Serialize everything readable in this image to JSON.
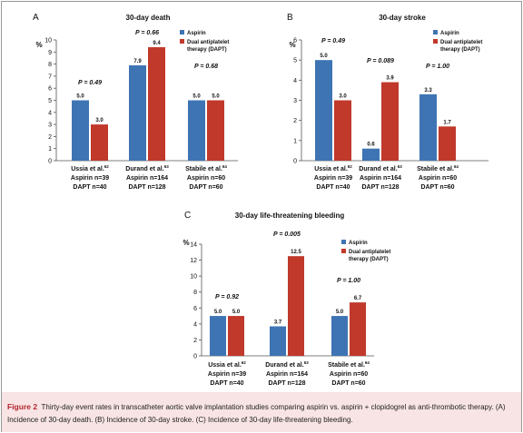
{
  "colors": {
    "aspirin": "#3e74b3",
    "dapt": "#c0392b",
    "caption_bg": "#f8e4e4",
    "caption_label": "#b3262e"
  },
  "legend": {
    "aspirin": "Aspirin",
    "dapt_line1": "Dual antiplatelet",
    "dapt_line2": "therapy (DAPT)"
  },
  "caption": {
    "label": "Figure 2",
    "text": "Thirty-day event rates in transcatheter aortic valve implantation studies comparing aspirin vs. aspirin + clopidogrel as anti-thrombotic therapy. (A) Incidence of 30-day death. (B) Incidence of 30-day stroke. (C) Incidence of 30-day life-threatening bleeding."
  },
  "chart_data": [
    {
      "panel": "A",
      "type": "bar",
      "title": "30-day death",
      "ylabel": "%",
      "ylim": [
        0,
        10
      ],
      "yticks": [
        0,
        1,
        2,
        3,
        4,
        5,
        6,
        7,
        8,
        9,
        10
      ],
      "legend_position": "top-right",
      "grid": false,
      "categories": [
        {
          "study": "Ussia et al.",
          "ref": "62",
          "line2": "Aspirin n=39",
          "line3": "DAPT n=40"
        },
        {
          "study": "Durand et al.",
          "ref": "63",
          "line2": "Aspirin n=164",
          "line3": "DAPT n=128"
        },
        {
          "study": "Stabile et al.",
          "ref": "64",
          "line2": "Aspirin n=60",
          "line3": "DAPT n=60"
        }
      ],
      "series": [
        {
          "name": "Aspirin",
          "values": [
            5.0,
            7.9,
            5.0
          ],
          "labels": [
            "5.0",
            "7.9",
            "5.0"
          ]
        },
        {
          "name": "Dual antiplatelet therapy (DAPT)",
          "values": [
            3.0,
            9.4,
            5.0
          ],
          "labels": [
            "3.0",
            "9.4",
            "5.0"
          ]
        }
      ],
      "pvalues": [
        "P = 0.49",
        "P = 0.66",
        "P = 0.68"
      ]
    },
    {
      "panel": "B",
      "type": "bar",
      "title": "30-day stroke",
      "ylabel": "%",
      "ylim": [
        0,
        6
      ],
      "yticks": [
        0,
        1,
        2,
        3,
        4,
        5,
        6
      ],
      "legend_position": "top-right",
      "grid": false,
      "categories": [
        {
          "study": "Ussia et al.",
          "ref": "62",
          "line2": "Aspirin n=39",
          "line3": "DAPT n=40"
        },
        {
          "study": "Durand et al.",
          "ref": "63",
          "line2": "Aspirin n=164",
          "line3": "DAPT n=128"
        },
        {
          "study": "Stabile et al.",
          "ref": "64",
          "line2": "Aspirin n=60",
          "line3": "DAPT n=60"
        }
      ],
      "series": [
        {
          "name": "Aspirin",
          "values": [
            5.0,
            0.6,
            3.3
          ],
          "labels": [
            "5.0",
            "0.6",
            "3.3"
          ]
        },
        {
          "name": "Dual antiplatelet therapy (DAPT)",
          "values": [
            3.0,
            3.9,
            1.7
          ],
          "labels": [
            "3.0",
            "3.9",
            "1.7"
          ]
        }
      ],
      "pvalues": [
        "P = 0.49",
        "P = 0.089",
        "P = 1.00"
      ]
    },
    {
      "panel": "C",
      "type": "bar",
      "title": "30-day life-threatening bleeding",
      "ylabel": "%",
      "ylim": [
        0,
        14
      ],
      "yticks": [
        0,
        2,
        4,
        6,
        8,
        10,
        12,
        14
      ],
      "legend_position": "top-right",
      "grid": false,
      "categories": [
        {
          "study": "Ussia et al.",
          "ref": "62",
          "line2": "Aspirin n=39",
          "line3": "DAPT n=40"
        },
        {
          "study": "Durand et al.",
          "ref": "63",
          "line2": "Aspirin n=164",
          "line3": "DAPT n=128"
        },
        {
          "study": "Stabile et al.",
          "ref": "64",
          "line2": "Aspirin n=60",
          "line3": "DAPT n=60"
        }
      ],
      "series": [
        {
          "name": "Aspirin",
          "values": [
            5.0,
            3.7,
            5.0
          ],
          "labels": [
            "5.0",
            "3.7",
            "5.0"
          ]
        },
        {
          "name": "Dual antiplatelet therapy (DAPT)",
          "values": [
            5.0,
            12.5,
            6.7
          ],
          "labels": [
            "5.0",
            "12.5",
            "6.7"
          ]
        }
      ],
      "pvalues": [
        "P = 0.92",
        "P = 0.005",
        "P = 1.00"
      ]
    }
  ]
}
